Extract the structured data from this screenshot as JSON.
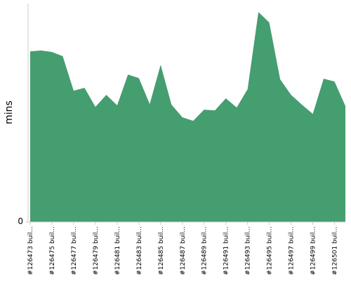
{
  "chart_data": {
    "type": "area",
    "y_label": "mins",
    "color": "#459e6f",
    "categories": [
      "#126473 buil...",
      null,
      "#126475 buil...",
      null,
      "#126477 buil...",
      null,
      "#126479 buil...",
      null,
      "#126481 buil...",
      null,
      "#126483 buil...",
      null,
      "#126485 buil...",
      null,
      "#126487 buil...",
      null,
      "#126489 buil...",
      null,
      "#126491 buil...",
      null,
      "#126493 buil...",
      null,
      "#126495 buil...",
      null,
      "#126497 buil...",
      null,
      "#126499 buil...",
      null,
      "#126501 buil...",
      null
    ],
    "values": [
      78.1,
      78.5,
      77.8,
      75.9,
      60.1,
      61.4,
      52.7,
      58.2,
      53.4,
      67.5,
      65.9,
      54.0,
      72.0,
      53.7,
      47.9,
      46.3,
      51.4,
      51.1,
      56.6,
      52.4,
      60.8,
      96.1,
      91.3,
      65.3,
      58.2,
      53.7,
      49.5,
      65.6,
      64.3,
      53.1
    ],
    "ylim": [
      0,
      100
    ],
    "yticks": [
      0
    ],
    "grid": false
  }
}
